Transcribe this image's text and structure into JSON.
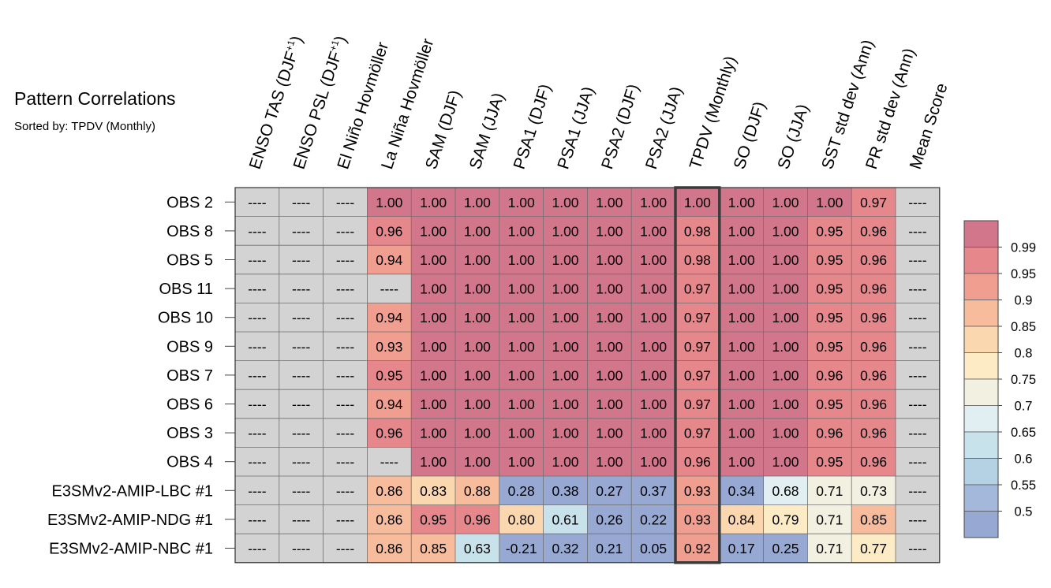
{
  "chart_data": {
    "type": "heatmap",
    "title": "Pattern Correlations",
    "subtitle": "Sorted by: TPDV (Monthly)",
    "columns": [
      {
        "label": "ENSO TAS (DJF",
        "sup": "+1",
        "close": ")"
      },
      {
        "label": "ENSO PSL (DJF",
        "sup": "+1",
        "close": ")"
      },
      {
        "label": "El Niño Hovmöller",
        "sup": "",
        "close": ""
      },
      {
        "label": "La Niña Hovmöller",
        "sup": "",
        "close": ""
      },
      {
        "label": "SAM (DJF)",
        "sup": "",
        "close": ""
      },
      {
        "label": "SAM (JJA)",
        "sup": "",
        "close": ""
      },
      {
        "label": "PSA1 (DJF)",
        "sup": "",
        "close": ""
      },
      {
        "label": "PSA1 (JJA)",
        "sup": "",
        "close": ""
      },
      {
        "label": "PSA2 (DJF)",
        "sup": "",
        "close": ""
      },
      {
        "label": "PSA2 (JJA)",
        "sup": "",
        "close": ""
      },
      {
        "label": "TPDV (Monthly)",
        "sup": "",
        "close": ""
      },
      {
        "label": "SO (DJF)",
        "sup": "",
        "close": ""
      },
      {
        "label": "SO (JJA)",
        "sup": "",
        "close": ""
      },
      {
        "label": "SST std dev (Ann)",
        "sup": "",
        "close": ""
      },
      {
        "label": "PR std dev (Ann)",
        "sup": "",
        "close": ""
      },
      {
        "label": "Mean Score",
        "sup": "",
        "close": ""
      }
    ],
    "highlight_column": "TPDV (Monthly)",
    "rows": [
      "OBS 2",
      "OBS 8",
      "OBS 5",
      "OBS 11",
      "OBS 10",
      "OBS 9",
      "OBS 7",
      "OBS 6",
      "OBS 3",
      "OBS 4",
      "E3SMv2-AMIP-LBC #1",
      "E3SMv2-AMIP-NDG #1",
      "E3SMv2-AMIP-NBC #1"
    ],
    "missing_label": "----",
    "values": [
      [
        null,
        null,
        null,
        1.0,
        1.0,
        1.0,
        1.0,
        1.0,
        1.0,
        1.0,
        1.0,
        1.0,
        1.0,
        1.0,
        0.97,
        null
      ],
      [
        null,
        null,
        null,
        0.96,
        1.0,
        1.0,
        1.0,
        1.0,
        1.0,
        1.0,
        0.98,
        1.0,
        1.0,
        0.95,
        0.96,
        null
      ],
      [
        null,
        null,
        null,
        0.94,
        1.0,
        1.0,
        1.0,
        1.0,
        1.0,
        1.0,
        0.98,
        1.0,
        1.0,
        0.95,
        0.96,
        null
      ],
      [
        null,
        null,
        null,
        null,
        1.0,
        1.0,
        1.0,
        1.0,
        1.0,
        1.0,
        0.97,
        1.0,
        1.0,
        0.95,
        0.96,
        null
      ],
      [
        null,
        null,
        null,
        0.94,
        1.0,
        1.0,
        1.0,
        1.0,
        1.0,
        1.0,
        0.97,
        1.0,
        1.0,
        0.95,
        0.96,
        null
      ],
      [
        null,
        null,
        null,
        0.93,
        1.0,
        1.0,
        1.0,
        1.0,
        1.0,
        1.0,
        0.97,
        1.0,
        1.0,
        0.95,
        0.96,
        null
      ],
      [
        null,
        null,
        null,
        0.95,
        1.0,
        1.0,
        1.0,
        1.0,
        1.0,
        1.0,
        0.97,
        1.0,
        1.0,
        0.96,
        0.96,
        null
      ],
      [
        null,
        null,
        null,
        0.94,
        1.0,
        1.0,
        1.0,
        1.0,
        1.0,
        1.0,
        0.97,
        1.0,
        1.0,
        0.95,
        0.96,
        null
      ],
      [
        null,
        null,
        null,
        0.96,
        1.0,
        1.0,
        1.0,
        1.0,
        1.0,
        1.0,
        0.97,
        1.0,
        1.0,
        0.96,
        0.96,
        null
      ],
      [
        null,
        null,
        null,
        null,
        1.0,
        1.0,
        1.0,
        1.0,
        1.0,
        1.0,
        0.96,
        1.0,
        1.0,
        0.95,
        0.96,
        null
      ],
      [
        null,
        null,
        null,
        0.86,
        0.83,
        0.88,
        0.28,
        0.38,
        0.27,
        0.37,
        0.93,
        0.34,
        0.68,
        0.71,
        0.73,
        null
      ],
      [
        null,
        null,
        null,
        0.86,
        0.95,
        0.96,
        0.8,
        0.61,
        0.26,
        0.22,
        0.93,
        0.84,
        0.79,
        0.71,
        0.85,
        null
      ],
      [
        null,
        null,
        null,
        0.86,
        0.85,
        0.63,
        -0.21,
        0.32,
        0.21,
        0.05,
        0.92,
        0.17,
        0.25,
        0.71,
        0.77,
        null
      ]
    ],
    "colorbar": {
      "tick_labels": [
        "0.99",
        "0.95",
        "0.9",
        "0.85",
        "0.8",
        "0.75",
        "0.7",
        "0.65",
        "0.6",
        "0.55",
        "0.5"
      ],
      "levels": [
        0.99,
        0.95,
        0.9,
        0.85,
        0.8,
        0.75,
        0.7,
        0.65,
        0.6,
        0.55,
        0.5
      ],
      "colors": [
        "#d2768c",
        "#e6878c",
        "#ef9e8f",
        "#f6bc9b",
        "#fbd7af",
        "#fdebc6",
        "#f2f1e1",
        "#e1eff3",
        "#c8e2ec",
        "#b4d2e4",
        "#a3b8da",
        "#97a9d3"
      ]
    },
    "missing_color": "#d3d3d3",
    "grid_color": "#6e6e6e"
  }
}
